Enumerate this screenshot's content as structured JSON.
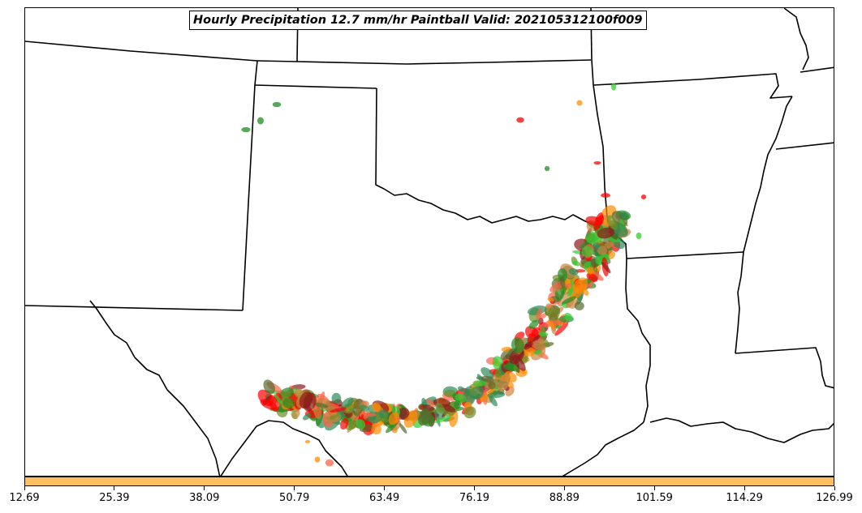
{
  "title": "Hourly Precipitation 12.7 mm/hr Paintball Valid: 202105312100f009",
  "colorbar": {
    "color": "#fdbf5f",
    "tick_labels": [
      "12.69",
      "25.39",
      "38.09",
      "50.79",
      "63.49",
      "76.19",
      "88.89",
      "101.59",
      "114.29",
      "126.99"
    ]
  },
  "member_colors": [
    "#ff0000",
    "#ff8c00",
    "#32cd32",
    "#8b1a1a",
    "#6b8e23",
    "#2e8b57",
    "#ff6347",
    "#cd853f",
    "#228b22",
    "#556b2f"
  ]
}
